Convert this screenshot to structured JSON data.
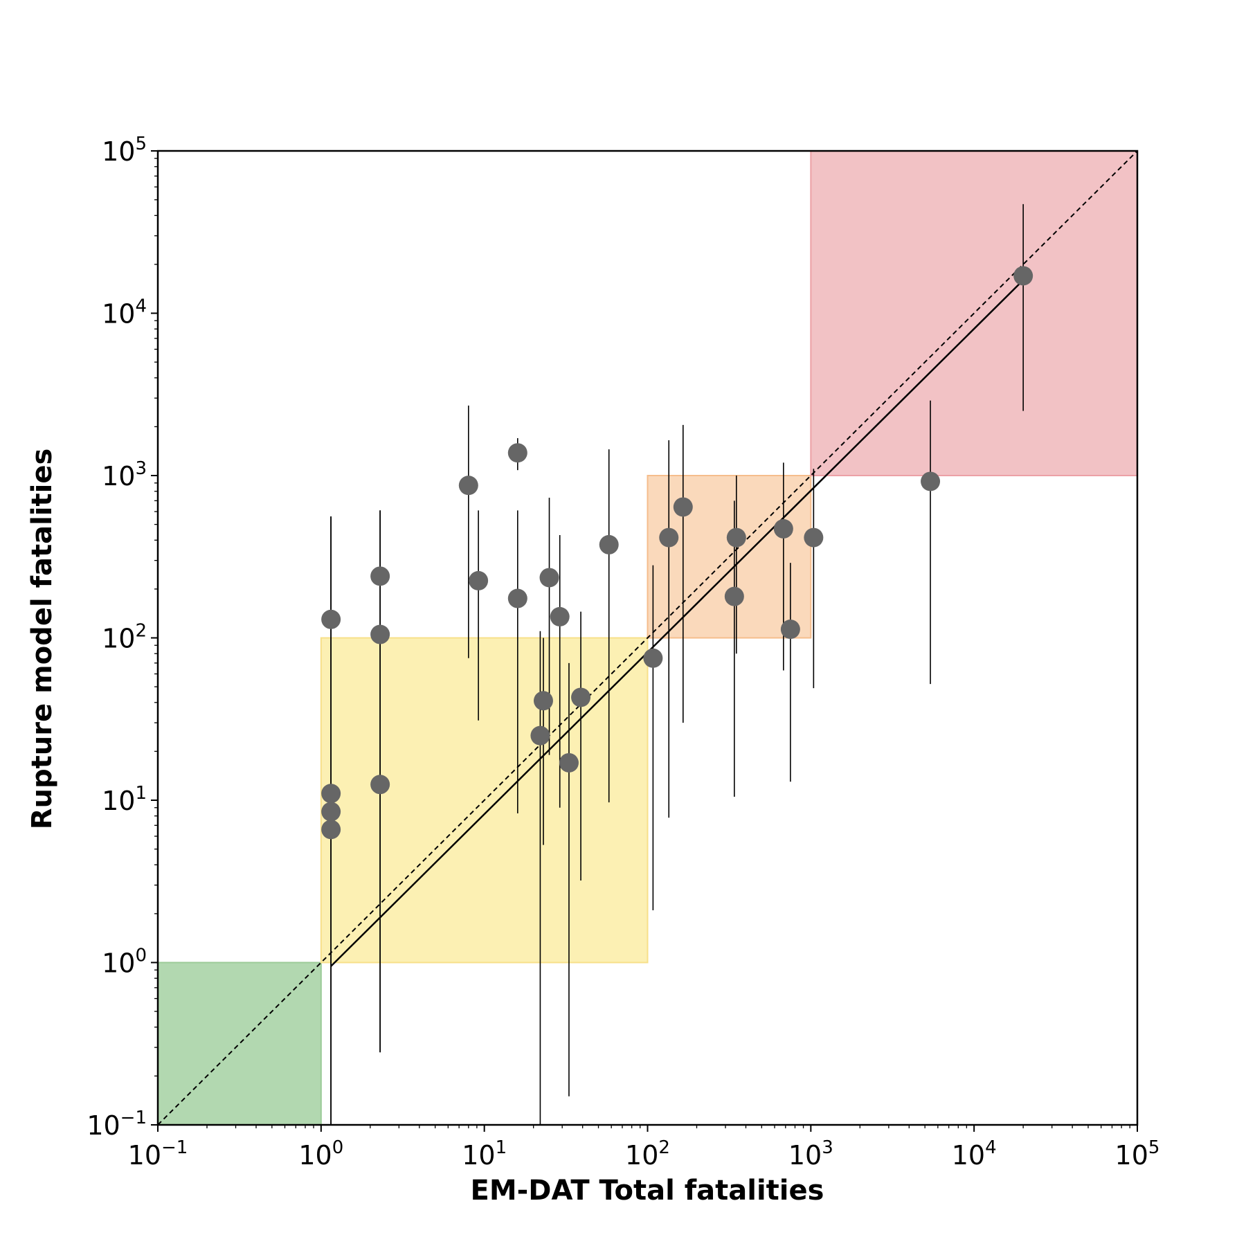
{
  "chart_data": {
    "type": "scatter",
    "title": "",
    "xlabel": "EM-DAT Total fatalities",
    "ylabel": "Rupture model fatalities",
    "xscale": "log",
    "yscale": "log",
    "xlim": [
      0.1,
      100000
    ],
    "ylim": [
      0.1,
      100000
    ],
    "grid": false,
    "legend": "none",
    "x_ticks": [
      {
        "base": "10",
        "exp": "−1",
        "value": 0.1
      },
      {
        "base": "10",
        "exp": "0",
        "value": 1
      },
      {
        "base": "10",
        "exp": "1",
        "value": 10
      },
      {
        "base": "10",
        "exp": "2",
        "value": 100
      },
      {
        "base": "10",
        "exp": "3",
        "value": 1000
      },
      {
        "base": "10",
        "exp": "4",
        "value": 10000
      },
      {
        "base": "10",
        "exp": "5",
        "value": 100000
      }
    ],
    "y_ticks": [
      {
        "base": "10",
        "exp": "−1",
        "value": 0.1
      },
      {
        "base": "10",
        "exp": "0",
        "value": 1
      },
      {
        "base": "10",
        "exp": "1",
        "value": 10
      },
      {
        "base": "10",
        "exp": "2",
        "value": 100
      },
      {
        "base": "10",
        "exp": "3",
        "value": 1000
      },
      {
        "base": "10",
        "exp": "4",
        "value": 10000
      },
      {
        "base": "10",
        "exp": "5",
        "value": 100000
      }
    ],
    "regions": [
      {
        "name": "green",
        "x": [
          0.1,
          1
        ],
        "y": [
          0.1,
          1
        ],
        "fill": "#b2d8b0",
        "edge": "#9ccb98"
      },
      {
        "name": "yellow",
        "x": [
          1,
          100
        ],
        "y": [
          1,
          100
        ],
        "fill": "#fcf0b3",
        "edge": "#f7e08a"
      },
      {
        "name": "orange",
        "x": [
          100,
          1000
        ],
        "y": [
          100,
          1000
        ],
        "fill": "#fad9bb",
        "edge": "#f5bd8c"
      },
      {
        "name": "red",
        "x": [
          1000,
          100000
        ],
        "y": [
          1000,
          100000
        ],
        "fill": "#f2c2c5",
        "edge": "#eca0a6"
      }
    ],
    "reference_line": {
      "style": "dashed",
      "x": [
        0.1,
        100000
      ],
      "y": [
        0.1,
        100000
      ]
    },
    "fit_line": {
      "style": "solid",
      "x": [
        1.15,
        20000
      ],
      "y": [
        0.95,
        16000
      ]
    },
    "marker_color": "#666666",
    "points": [
      {
        "x": 1.15,
        "y": 130,
        "y_low": 0.1,
        "y_high": 560
      },
      {
        "x": 1.15,
        "y": 11,
        "y_low": 0.1,
        "y_high": 560
      },
      {
        "x": 1.15,
        "y": 8.5,
        "y_low": 0.1,
        "y_high": 560
      },
      {
        "x": 1.15,
        "y": 6.6,
        "y_low": 0.1,
        "y_high": 560
      },
      {
        "x": 2.3,
        "y": 240,
        "y_low": 0.28,
        "y_high": 610
      },
      {
        "x": 2.3,
        "y": 105,
        "y_low": 0.28,
        "y_high": 610
      },
      {
        "x": 2.3,
        "y": 12.5,
        "y_low": 0.28,
        "y_high": 610
      },
      {
        "x": 8.0,
        "y": 870,
        "y_low": 75,
        "y_high": 2700
      },
      {
        "x": 9.2,
        "y": 225,
        "y_low": 31,
        "y_high": 610
      },
      {
        "x": 16,
        "y": 1380,
        "y_low": 1080,
        "y_high": 1700
      },
      {
        "x": 16,
        "y": 175,
        "y_low": 8.3,
        "y_high": 610
      },
      {
        "x": 22,
        "y": 25,
        "y_low": 0.1,
        "y_high": 110
      },
      {
        "x": 23,
        "y": 41,
        "y_low": 5.3,
        "y_high": 100
      },
      {
        "x": 25,
        "y": 235,
        "y_low": 19,
        "y_high": 730
      },
      {
        "x": 29,
        "y": 135,
        "y_low": 9,
        "y_high": 430
      },
      {
        "x": 33,
        "y": 17,
        "y_low": 0.15,
        "y_high": 70
      },
      {
        "x": 39,
        "y": 43,
        "y_low": 3.2,
        "y_high": 145
      },
      {
        "x": 58,
        "y": 375,
        "y_low": 9.7,
        "y_high": 1450
      },
      {
        "x": 108,
        "y": 75,
        "y_low": 2.1,
        "y_high": 280
      },
      {
        "x": 135,
        "y": 415,
        "y_low": 7.8,
        "y_high": 1650
      },
      {
        "x": 165,
        "y": 640,
        "y_low": 30,
        "y_high": 2050
      },
      {
        "x": 340,
        "y": 180,
        "y_low": 10.5,
        "y_high": 700
      },
      {
        "x": 350,
        "y": 415,
        "y_low": 80,
        "y_high": 1000
      },
      {
        "x": 680,
        "y": 470,
        "y_low": 63,
        "y_high": 1200
      },
      {
        "x": 750,
        "y": 113,
        "y_low": 13,
        "y_high": 290
      },
      {
        "x": 1040,
        "y": 415,
        "y_low": 49,
        "y_high": 1100
      },
      {
        "x": 5400,
        "y": 920,
        "y_low": 52,
        "y_high": 2900
      },
      {
        "x": 20000,
        "y": 17000,
        "y_low": 2500,
        "y_high": 47000
      }
    ]
  }
}
